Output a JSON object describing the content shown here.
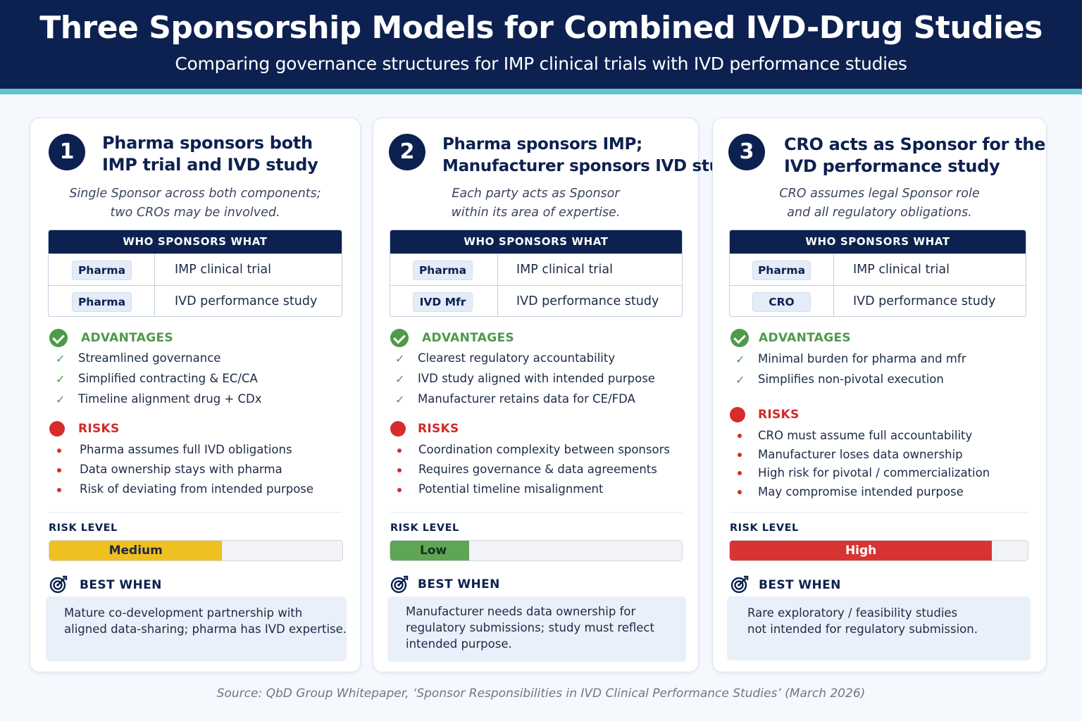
{
  "header": {
    "title": "Three Sponsorship Models for Combined IVD-Drug Studies",
    "subtitle": "Comparing governance structures for IMP clinical trials with IVD performance studies"
  },
  "labels": {
    "table_head": "WHO SPONSORS WHAT",
    "advantages": "ADVANTAGES",
    "risks": "RISKS",
    "risk_level": "RISK LEVEL",
    "best_when": "BEST WHEN"
  },
  "colors": {
    "navy": "#0d2150",
    "teal": "#5fc3c9",
    "green": "#4d9a4a",
    "red": "#d72c2c",
    "amber": "#f0c020"
  },
  "cards": [
    {
      "number": "1",
      "title": [
        "Pharma sponsors both",
        "IMP trial and IVD study"
      ],
      "description": [
        "Single Sponsor across both components;",
        "two CROs may be involved."
      ],
      "rows": [
        {
          "who": "Pharma",
          "what": "IMP clinical trial"
        },
        {
          "who": "Pharma",
          "what": "IVD performance study"
        }
      ],
      "advantages": [
        "Streamlined governance",
        "Simplified contracting & EC/CA",
        "Timeline alignment drug + CDx"
      ],
      "risks": [
        "Pharma assumes full IVD obligations",
        "Data ownership stays with pharma",
        "Risk of deviating from intended purpose"
      ],
      "risk_level": {
        "label": "Medium",
        "fill_fraction": 0.59,
        "color": "#f0c020"
      },
      "best_when": [
        "Mature co-development partnership with",
        "aligned data-sharing; pharma has IVD expertise."
      ]
    },
    {
      "number": "2",
      "title": [
        "Pharma sponsors IMP;",
        "Manufacturer sponsors IVD study"
      ],
      "description": [
        "Each party acts as Sponsor",
        "within its area of expertise."
      ],
      "rows": [
        {
          "who": "Pharma",
          "what": "IMP clinical trial"
        },
        {
          "who": "IVD Mfr",
          "what": "IVD performance study"
        }
      ],
      "advantages": [
        "Clearest regulatory accountability",
        "IVD study aligned with intended purpose",
        "Manufacturer retains data for CE/FDA"
      ],
      "risks": [
        "Coordination complexity between sponsors",
        "Requires governance & data agreements",
        "Potential timeline misalignment"
      ],
      "risk_level": {
        "label": "Low",
        "fill_fraction": 0.27,
        "color": "#5fa556"
      },
      "best_when": [
        "Manufacturer needs data ownership for",
        "regulatory submissions; study must reflect",
        "intended purpose."
      ]
    },
    {
      "number": "3",
      "title": [
        "CRO acts as Sponsor for the",
        "IVD performance study"
      ],
      "description": [
        "CRO assumes legal Sponsor role",
        "and all regulatory obligations."
      ],
      "rows": [
        {
          "who": "Pharma",
          "what": "IMP clinical trial"
        },
        {
          "who": "CRO",
          "what": "IVD performance study"
        }
      ],
      "advantages": [
        "Minimal burden for pharma and mfr",
        "Simplifies non-pivotal execution"
      ],
      "risks": [
        "CRO must assume full accountability",
        "Manufacturer loses data ownership",
        "High risk for pivotal / commercialization",
        "May compromise intended purpose"
      ],
      "risk_level": {
        "label": "High",
        "fill_fraction": 0.88,
        "color": "#d93434"
      },
      "best_when": [
        "Rare exploratory / feasibility studies",
        "not intended for regulatory submission."
      ]
    }
  ],
  "source": "Source: QbD Group Whitepaper, ‘Sponsor Responsibilities in IVD Clinical Performance Studies’ (March 2026)"
}
